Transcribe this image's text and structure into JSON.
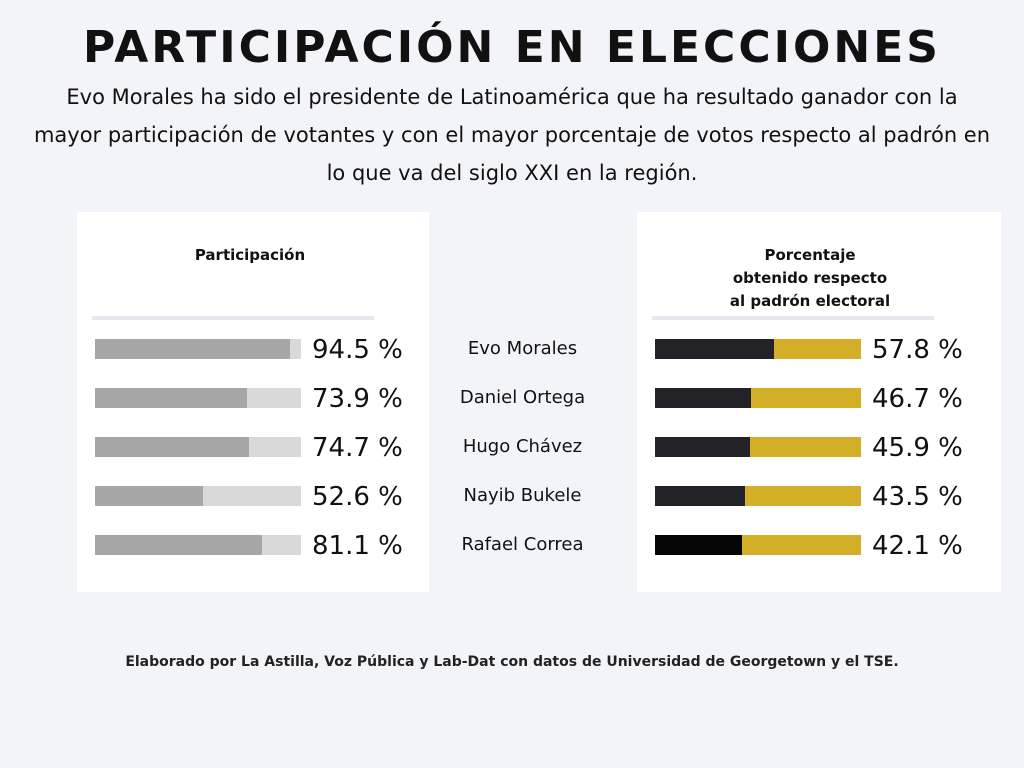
{
  "title": "PARTICIPACIÓN EN ELECCIONES",
  "subtitle": "Evo Morales ha sido el presidente de Latinoamérica  que ha resultado ganador con la mayor participación de votantes y con el mayor porcentaje de votos respecto al padrón en lo que va del siglo XXI en la región.",
  "source": "Elaborado por La Astilla, Voz Pública y Lab-Dat con datos de Universidad de Georgetown y el TSE.",
  "chart_data": [
    {
      "type": "bar",
      "orientation": "horizontal",
      "title": "Participación",
      "categories": [
        "Evo Morales",
        "Daniel Ortega",
        "Hugo Chávez",
        "Nayib Bukele",
        "Rafael Correa"
      ],
      "values": [
        94.5,
        73.9,
        74.7,
        52.6,
        81.1
      ],
      "labels": [
        "94.5 %",
        "73.9 %",
        "74.7 %",
        "52.6 %",
        "81.1 %"
      ],
      "xlim": [
        0,
        100
      ],
      "colors": {
        "fill": "#a6a6a6",
        "track": "#d9d9d9"
      }
    },
    {
      "type": "bar",
      "orientation": "horizontal",
      "title": "Porcentaje obtenido respecto al padrón electoral",
      "categories": [
        "Evo Morales",
        "Daniel Ortega",
        "Hugo Chávez",
        "Nayib Bukele",
        "Rafael Correa"
      ],
      "values": [
        57.8,
        46.7,
        45.9,
        43.5,
        42.1
      ],
      "labels": [
        "57.8 %",
        "46.7 %",
        "45.9 %",
        "43.5 %",
        "42.1 %"
      ],
      "xlim": [
        0,
        100
      ],
      "colors": {
        "fill": "#222227",
        "fill_last": "#050505",
        "track": "#d3af27"
      }
    }
  ]
}
